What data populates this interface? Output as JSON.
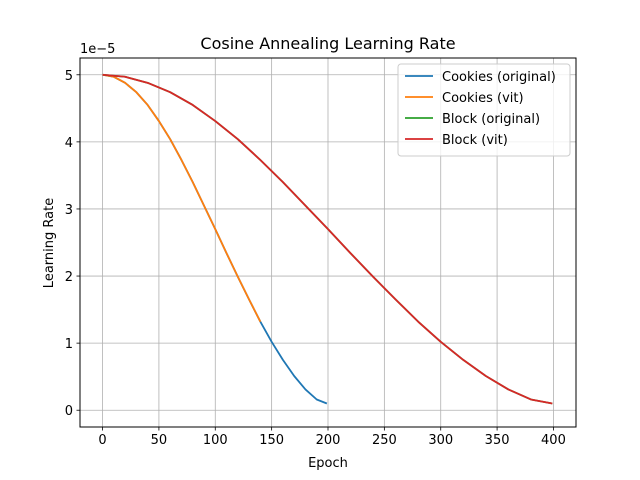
{
  "chart_data": {
    "type": "line",
    "title": "Cosine Annealing Learning Rate",
    "xlabel": "Epoch",
    "ylabel": "Learning Rate",
    "y_offset_label": "1e−5",
    "xlim": [
      -20,
      420
    ],
    "ylim": [
      -0.25,
      5.25
    ],
    "xticks": [
      0,
      50,
      100,
      150,
      200,
      250,
      300,
      350,
      400
    ],
    "yticks": [
      0,
      1,
      2,
      3,
      4,
      5
    ],
    "grid": true,
    "legend_position": "top-right",
    "series": [
      {
        "name": "Cookies (original)",
        "color": "#1f77b4",
        "x": [
          0,
          10,
          20,
          30,
          40,
          50,
          60,
          70,
          80,
          90,
          100,
          110,
          120,
          130,
          140,
          150,
          160,
          170,
          180,
          190,
          199
        ],
        "y": [
          5.0,
          4.97,
          4.88,
          4.74,
          4.55,
          4.31,
          4.04,
          3.73,
          3.4,
          3.05,
          2.7,
          2.34,
          1.99,
          1.65,
          1.32,
          1.02,
          0.75,
          0.51,
          0.31,
          0.16,
          0.1
        ]
      },
      {
        "name": "Cookies (vit)",
        "color": "#ff7f0e",
        "x": [
          0,
          10,
          20,
          30,
          40,
          50,
          60,
          70,
          80,
          90,
          100,
          110,
          120,
          130,
          140
        ],
        "y": [
          5.0,
          4.97,
          4.88,
          4.74,
          4.55,
          4.31,
          4.04,
          3.73,
          3.4,
          3.05,
          2.7,
          2.34,
          1.99,
          1.65,
          1.32
        ]
      },
      {
        "name": "Block (original)",
        "color": "#2ca02c",
        "x": [
          0,
          20,
          40,
          60,
          80,
          100,
          120,
          140,
          160,
          180,
          200,
          220,
          240,
          260,
          280,
          300,
          320,
          340,
          360,
          380,
          399
        ],
        "y": [
          5.0,
          4.97,
          4.88,
          4.74,
          4.55,
          4.31,
          4.04,
          3.73,
          3.4,
          3.05,
          2.7,
          2.34,
          1.99,
          1.65,
          1.32,
          1.02,
          0.75,
          0.51,
          0.31,
          0.16,
          0.1
        ]
      },
      {
        "name": "Block (vit)",
        "color": "#d62728",
        "x": [
          0,
          20,
          40,
          60,
          80,
          100,
          120,
          140,
          160,
          180,
          200,
          220,
          240,
          260,
          280,
          300,
          320,
          340,
          360,
          380,
          399
        ],
        "y": [
          5.0,
          4.97,
          4.88,
          4.74,
          4.55,
          4.31,
          4.04,
          3.73,
          3.4,
          3.05,
          2.7,
          2.34,
          1.99,
          1.65,
          1.32,
          1.02,
          0.75,
          0.51,
          0.31,
          0.16,
          0.1
        ]
      }
    ]
  }
}
